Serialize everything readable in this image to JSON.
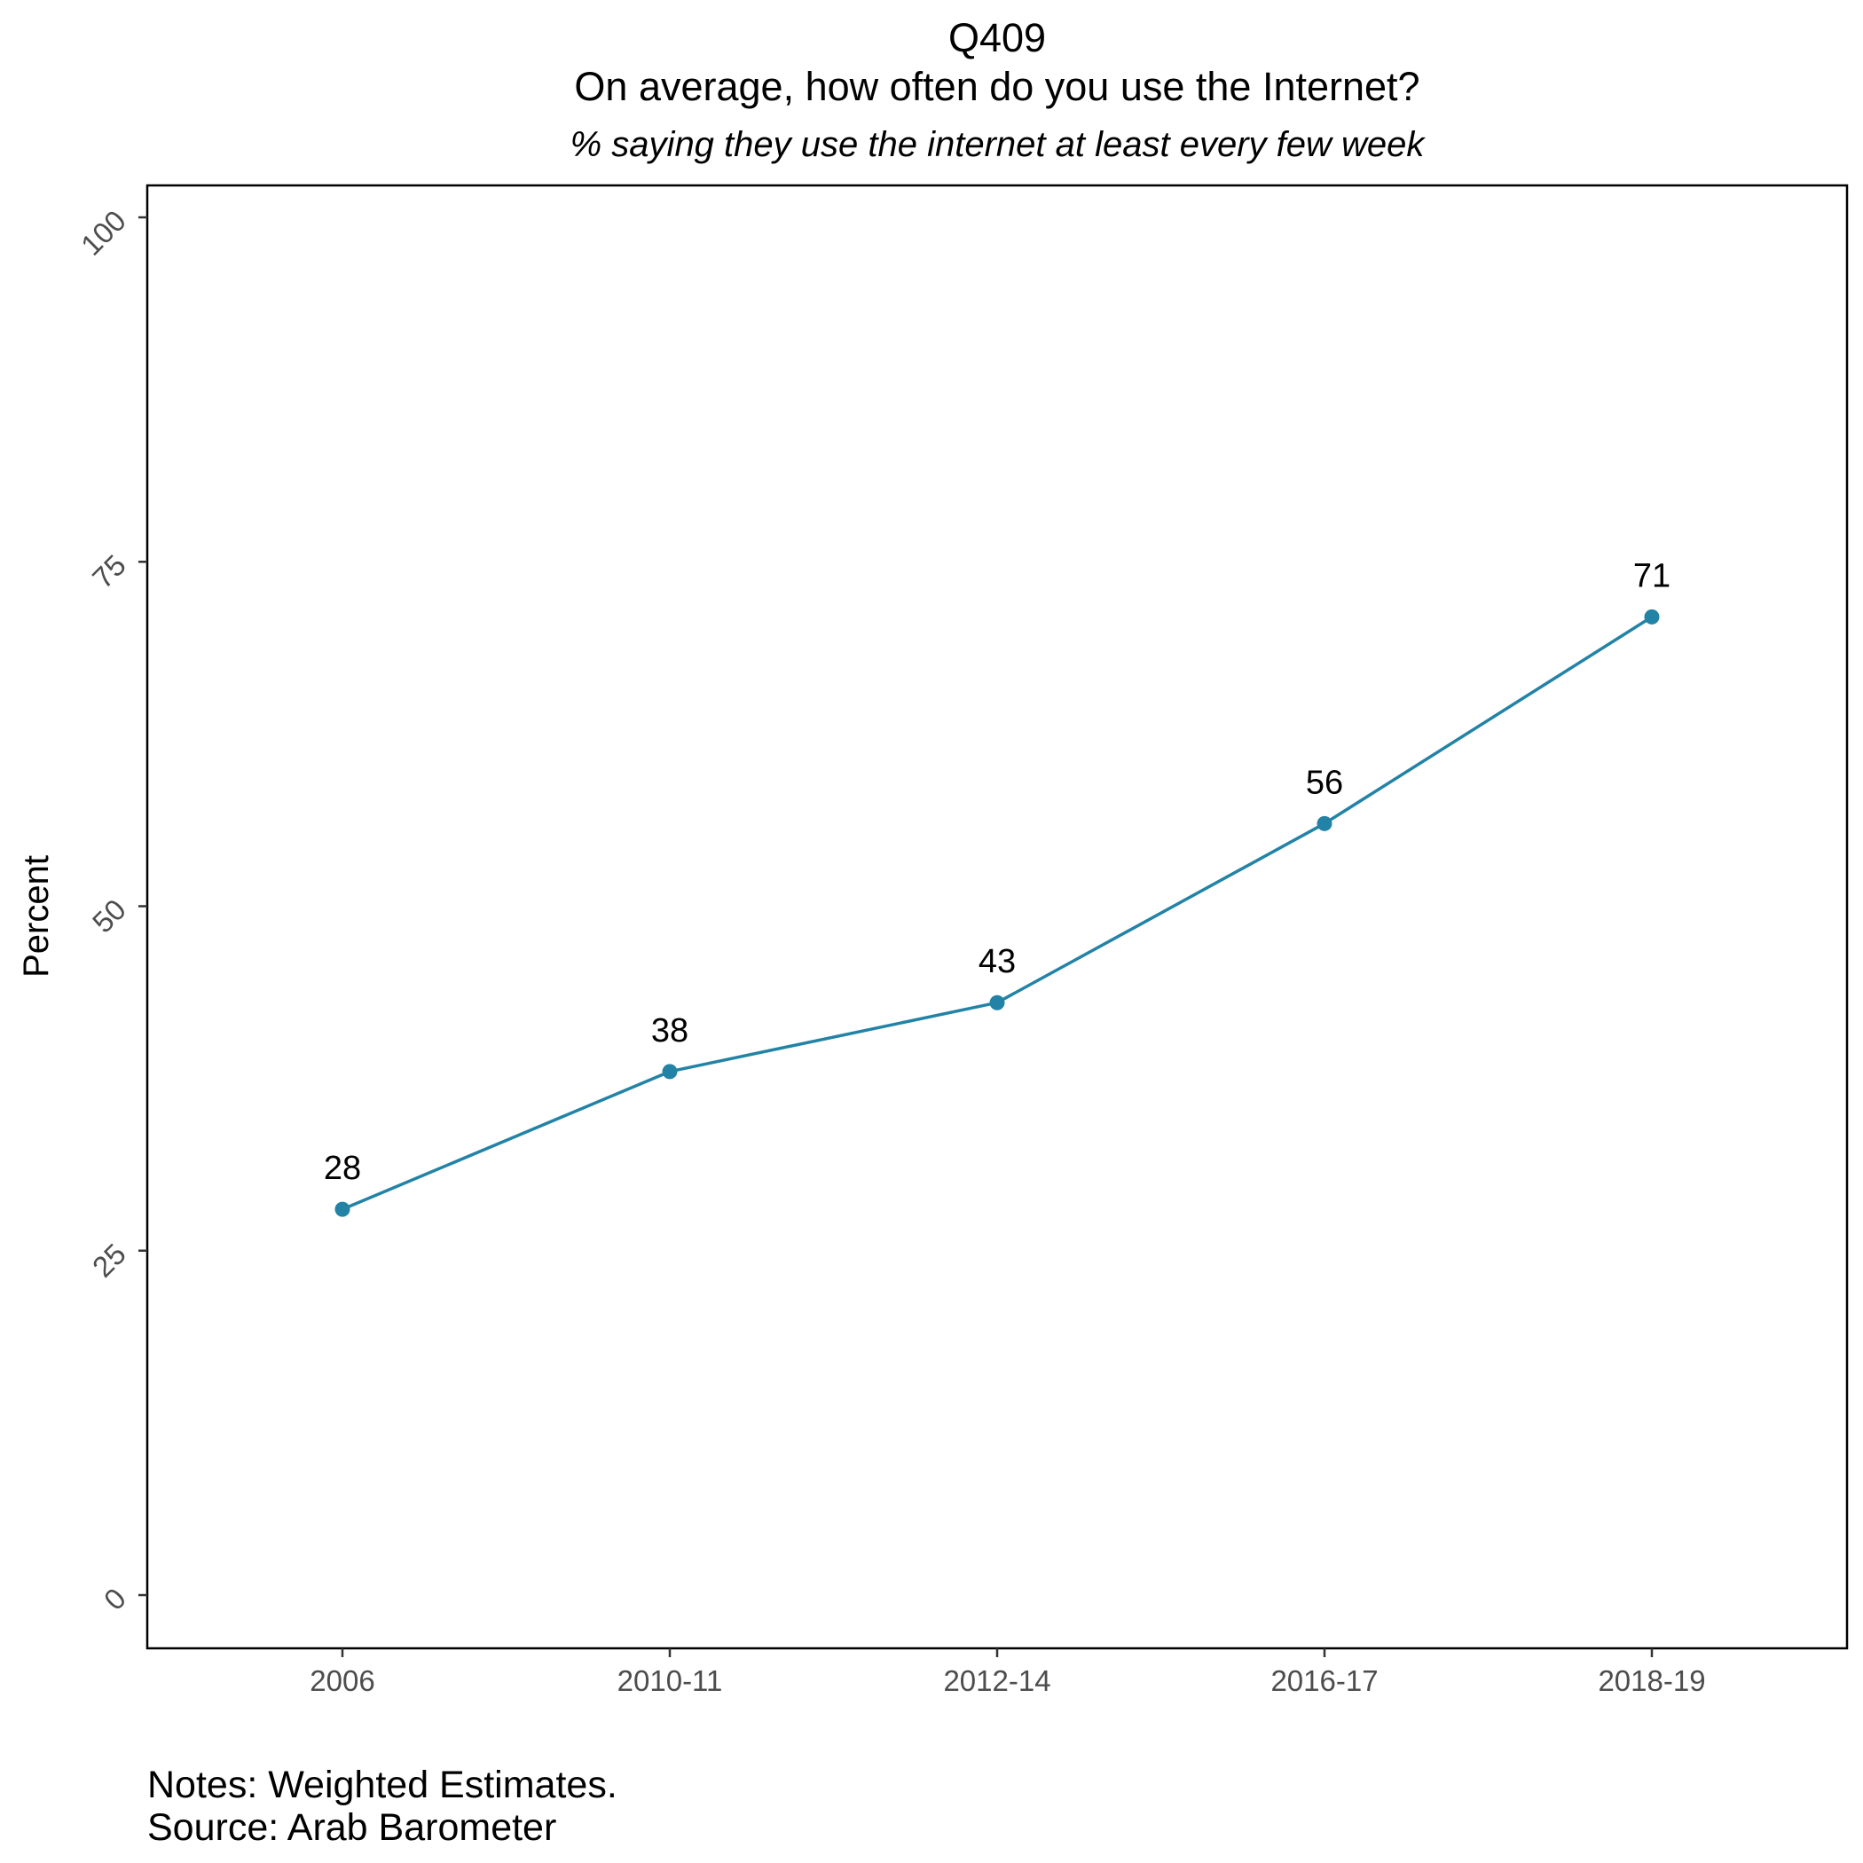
{
  "chart_data": {
    "type": "line",
    "title": "Q409",
    "subtitle_line1": "On average, how often do you use the Internet?",
    "subtitle_line2": "% saying they use the internet at least every few week",
    "xlabel": "",
    "ylabel": "Percent",
    "categories": [
      "2006",
      "2010-11",
      "2012-14",
      "2016-17",
      "2018-19"
    ],
    "series": [
      {
        "values": [
          28,
          38,
          43,
          56,
          71
        ],
        "labels": [
          "28",
          "38",
          "43",
          "56",
          "71"
        ],
        "color": "#2283a6"
      }
    ],
    "ylim": [
      0,
      100
    ],
    "yticks": [
      0,
      25,
      50,
      75,
      100
    ],
    "ytick_labels": [
      "0",
      "25",
      "50",
      "75",
      "100"
    ],
    "grid": false,
    "legend": "none"
  },
  "caption": {
    "notes": "Notes: Weighted Estimates.",
    "source": "Source: Arab Barometer"
  }
}
